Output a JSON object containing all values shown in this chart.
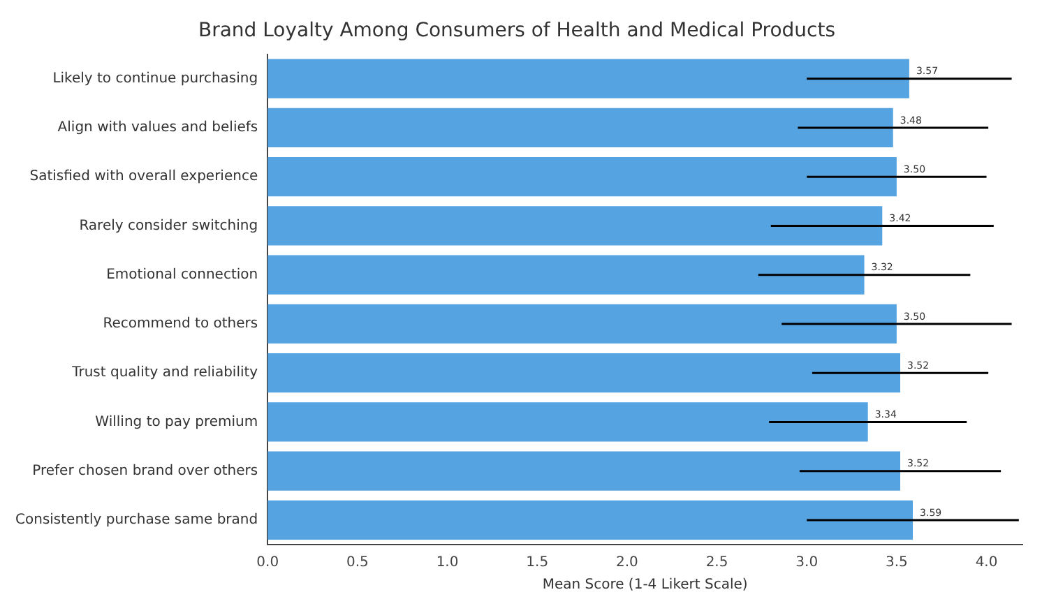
{
  "chart_data": {
    "type": "bar",
    "orientation": "horizontal",
    "title": "Brand Loyalty Among Consumers of Health and Medical Products",
    "xlabel": "Mean Score (1-4 Likert Scale)",
    "categories": [
      "Likely to continue purchasing",
      "Align with values and beliefs",
      "Satisfied with overall experience",
      "Rarely consider switching",
      "Emotional connection",
      "Recommend to others",
      "Trust quality and reliability",
      "Willing to pay premium",
      "Prefer chosen brand over others",
      "Consistently purchase same brand"
    ],
    "values": [
      3.57,
      3.48,
      3.5,
      3.42,
      3.32,
      3.5,
      3.52,
      3.34,
      3.52,
      3.59
    ],
    "errors": [
      0.57,
      0.53,
      0.5,
      0.62,
      0.59,
      0.64,
      0.49,
      0.55,
      0.56,
      0.59
    ],
    "value_labels": [
      "3.57",
      "3.48",
      "3.50",
      "3.42",
      "3.32",
      "3.50",
      "3.52",
      "3.34",
      "3.52",
      "3.59"
    ],
    "color": "#55a3e0",
    "grid": false,
    "xlim": [
      0,
      4.2
    ],
    "xticks": [
      {
        "value": 0,
        "label": "0.0"
      },
      {
        "value": 0.5,
        "label": "0.5"
      },
      {
        "value": 1,
        "label": "1.0"
      },
      {
        "value": 1.5,
        "label": "1.5"
      },
      {
        "value": 2,
        "label": "2.0"
      },
      {
        "value": 2.5,
        "label": "2.5"
      },
      {
        "value": 3,
        "label": "3.0"
      },
      {
        "value": 3.5,
        "label": "3.5"
      },
      {
        "value": 4,
        "label": "4.0"
      }
    ]
  }
}
